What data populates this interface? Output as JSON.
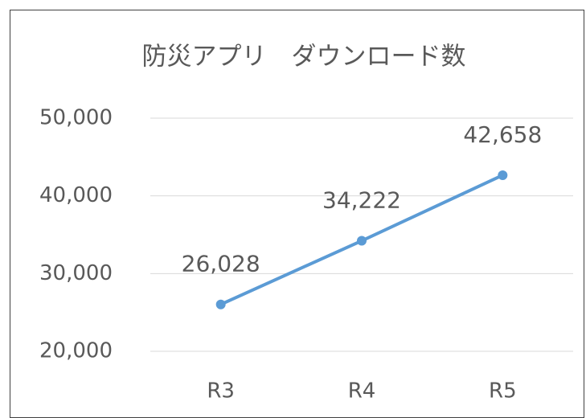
{
  "chart_data": {
    "type": "line",
    "title": "防災アプリ　ダウンロード数",
    "categories": [
      "R3",
      "R4",
      "R5"
    ],
    "series": [
      {
        "name": "ダウンロード数",
        "color": "#5b9bd5",
        "values": [
          26028,
          34222,
          42658
        ],
        "value_labels": [
          "26,028",
          "34,222",
          "42,658"
        ]
      }
    ],
    "ylim": [
      20000,
      50000
    ],
    "yticks": [
      {
        "value": 20000,
        "label": "20,000"
      },
      {
        "value": 30000,
        "label": "30,000"
      },
      {
        "value": 40000,
        "label": "40,000"
      },
      {
        "value": 50000,
        "label": "50,000"
      }
    ],
    "grid": true
  }
}
